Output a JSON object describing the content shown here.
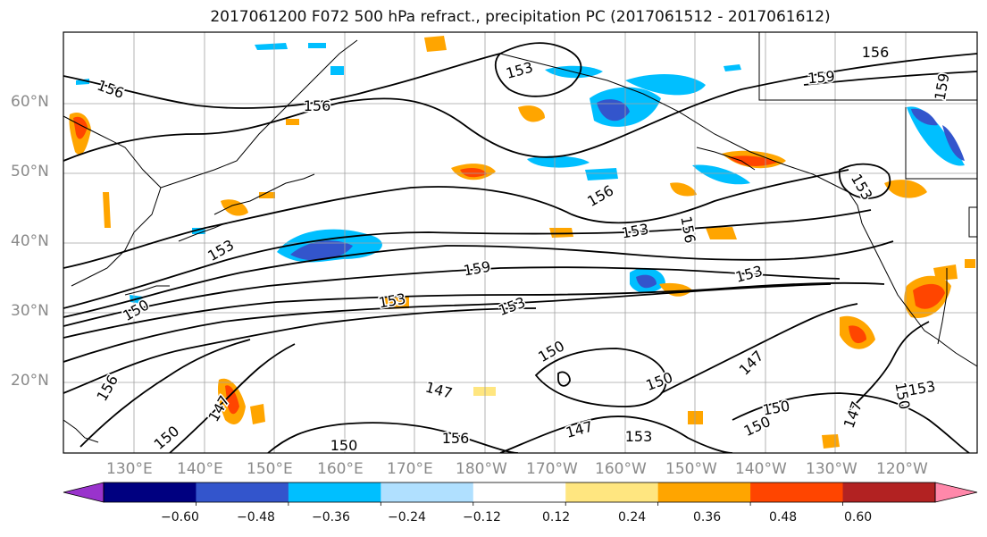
{
  "title": "2017061200 F072 500 hPa refract., precipitation PC (2017061512 - 2017061612)",
  "lat_labels": [
    "60°N",
    "50°N",
    "40°N",
    "30°N",
    "20°N"
  ],
  "lon_labels": [
    "130°E",
    "140°E",
    "150°E",
    "160°E",
    "170°E",
    "180°W",
    "170°W",
    "160°W",
    "150°W",
    "140°W",
    "130°W",
    "120°W"
  ],
  "contour_labels": [
    "156",
    "156",
    "153",
    "159",
    "159",
    "156",
    "153",
    "156",
    "153",
    "156",
    "159",
    "153",
    "153",
    "153",
    "150",
    "153",
    "150",
    "147",
    "150",
    "147",
    "150",
    "147",
    "153",
    "150",
    "150",
    "147",
    "153",
    "150",
    "156",
    "156",
    "150",
    "147"
  ],
  "colorbar": {
    "ticks": [
      "−0.60",
      "−0.48",
      "−0.36",
      "−0.24",
      "−0.12",
      "0.12",
      "0.24",
      "0.36",
      "0.48",
      "0.60"
    ],
    "colors": [
      "#9933cc",
      "#000080",
      "#3355cc",
      "#00bfff",
      "#b0e0ff",
      "#ffffff",
      "#ffe680",
      "#ffa500",
      "#ff4500",
      "#b22222",
      "#ff88aa"
    ]
  }
}
